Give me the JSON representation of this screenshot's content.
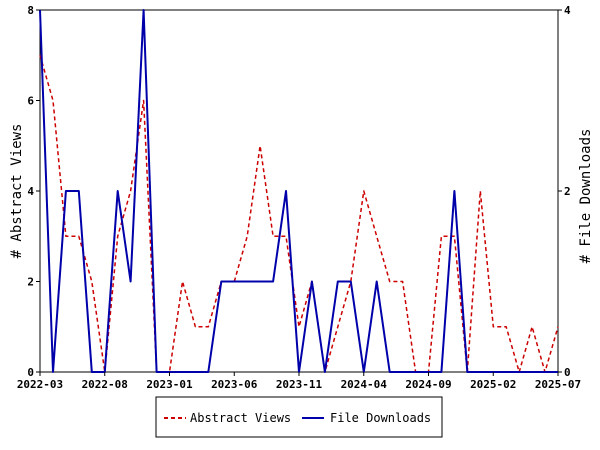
{
  "chart_data": {
    "type": "line",
    "xlabel": "",
    "ylabel": "# Abstract Views",
    "y2label": "# File Downloads",
    "ylim": [
      0,
      8
    ],
    "y2lim": [
      0,
      4
    ],
    "yticks": [
      "0",
      "2",
      "4",
      "6",
      "8"
    ],
    "y2ticks": [
      "0",
      "2",
      "4"
    ],
    "xticks": [
      "2022-03",
      "2022-08",
      "2023-01",
      "2023-06",
      "2023-11",
      "2024-04",
      "2024-09",
      "2025-02",
      "2025-07"
    ],
    "x": [
      "2022-03",
      "2022-04",
      "2022-05",
      "2022-06",
      "2022-07",
      "2022-08",
      "2022-09",
      "2022-10",
      "2022-11",
      "2022-12",
      "2023-01",
      "2023-02",
      "2023-03",
      "2023-04",
      "2023-05",
      "2023-06",
      "2023-07",
      "2023-08",
      "2023-09",
      "2023-10",
      "2023-11",
      "2023-12",
      "2024-01",
      "2024-02",
      "2024-03",
      "2024-04",
      "2024-05",
      "2024-06",
      "2024-07",
      "2024-08",
      "2024-09",
      "2024-10",
      "2024-11",
      "2024-12",
      "2025-01",
      "2025-02",
      "2025-03",
      "2025-04",
      "2025-05",
      "2025-06",
      "2025-07"
    ],
    "grid": false,
    "legend_position": "bottom",
    "series": [
      {
        "name": "Abstract Views",
        "axis": "left",
        "color": "#cc0000",
        "style": "dashed",
        "values": [
          7,
          6,
          3,
          3,
          2,
          0,
          3,
          4,
          6,
          0,
          0,
          2,
          1,
          1,
          2,
          2,
          3,
          5,
          3,
          3,
          1,
          2,
          0,
          1,
          2,
          4,
          3,
          2,
          2,
          0,
          0,
          3,
          3,
          0,
          4,
          1,
          1,
          0,
          1,
          0,
          1
        ]
      },
      {
        "name": "File Downloads",
        "axis": "right",
        "color": "#0000aa",
        "style": "solid",
        "values": [
          4,
          0,
          2,
          2,
          0,
          0,
          2,
          1,
          4,
          0,
          0,
          0,
          0,
          0,
          1,
          1,
          1,
          1,
          1,
          2,
          0,
          1,
          0,
          1,
          1,
          0,
          1,
          0,
          0,
          0,
          0,
          0,
          2,
          0,
          0,
          0,
          0,
          0,
          0,
          0,
          0
        ]
      }
    ]
  }
}
